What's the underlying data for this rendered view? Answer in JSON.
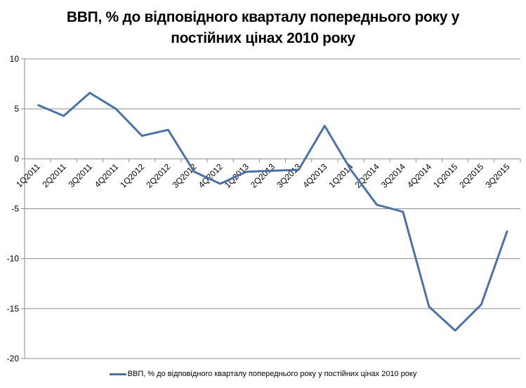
{
  "chart_data": {
    "type": "line",
    "title": "ВВП, % до відповідного кварталу попереднього року у постійних цінах 2010 року",
    "title_lines": [
      "ВВП, % до відповідного кварталу попереднього року у",
      "постійних цінах 2010 року"
    ],
    "xlabel": "",
    "ylabel": "",
    "ylim": [
      -20,
      10
    ],
    "yticks": [
      10,
      5,
      0,
      -5,
      -10,
      -15,
      -20
    ],
    "grid": true,
    "legend_position": "bottom",
    "categories": [
      "1Q2011",
      "2Q2011",
      "3Q2011",
      "4Q2011",
      "1Q2012",
      "2Q2012",
      "3Q2012",
      "4Q2012",
      "1Q2013",
      "2Q2013",
      "3Q2013",
      "4Q2013",
      "1Q2014",
      "2Q2014",
      "3Q2014",
      "4Q2014",
      "1Q2015",
      "2Q2015",
      "3Q2015"
    ],
    "series": [
      {
        "name": "ВВП, % до відповідного кварталу попереднього року у постійних цінах 2010 року",
        "color": "#4a72a6",
        "values": [
          5.4,
          4.3,
          6.6,
          5.0,
          2.3,
          2.9,
          -1.3,
          -2.5,
          -1.3,
          -1.2,
          -1.1,
          3.3,
          -1.1,
          -4.6,
          -5.3,
          -14.8,
          -17.2,
          -14.6,
          -7.2
        ]
      }
    ]
  },
  "legend": {
    "label": "ВВП, % до відповідного  кварталу попереднього року у постійних цінах  2010 року"
  }
}
